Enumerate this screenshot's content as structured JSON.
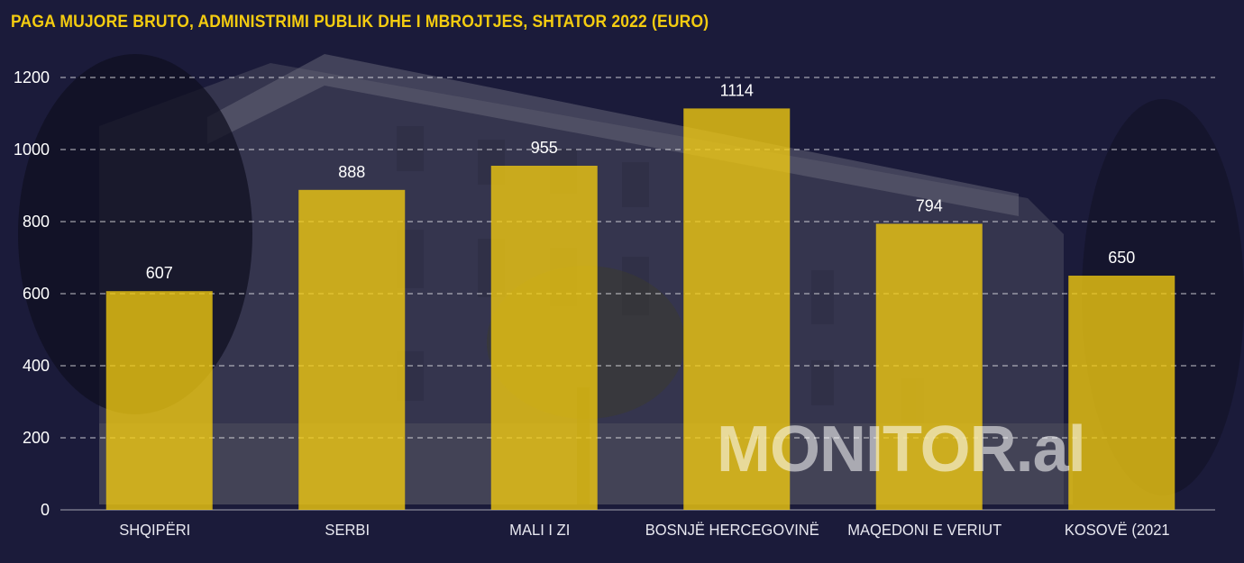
{
  "chart_data": {
    "type": "bar",
    "title": "PAGA MUJORE BRUTO, ADMINISTRIMI PUBLIK DHE I MBROJTJES, SHTATOR 2022 (EURO)",
    "categories": [
      "SHQIPËRI",
      "SERBI",
      "MALI I ZI",
      "BOSNJË HERCEGOVINË",
      "MAQEDONI E VERIUT",
      "KOSOVË (2021"
    ],
    "values": [
      607,
      888,
      955,
      1114,
      794,
      650
    ],
    "value_labels": [
      "607",
      "888",
      "955",
      "1114",
      "794",
      "650"
    ],
    "yticks": [
      "0",
      "200",
      "400",
      "600",
      "800",
      "1000",
      "1200"
    ],
    "ylim": [
      0,
      1200
    ],
    "grid": "horizontal dashed",
    "bar_color": "#f4cc10",
    "title_color": "#f4cc10",
    "background_color": "#1b1b3a"
  },
  "watermark": {
    "text": "MONITOR.al"
  }
}
